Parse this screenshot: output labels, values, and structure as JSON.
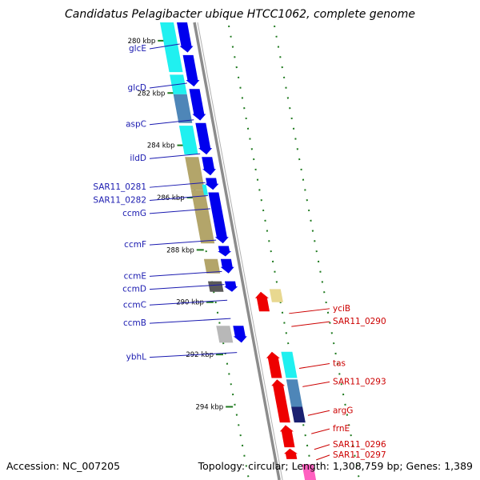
{
  "title": "Candidatus Pelagibacter ubique HTCC1062, complete genome",
  "footer": {
    "accession": "Accession: NC_007205",
    "summary": "Topology: circular; Length: 1,308,759 bp; Genes: 1,389"
  },
  "map": {
    "kbp_start": 279.3,
    "kbp_end": 296.8,
    "ticks": [
      {
        "kbp": 280,
        "label": "280 kbp"
      },
      {
        "kbp": 282,
        "label": "282 kbp"
      },
      {
        "kbp": 284,
        "label": "284 kbp"
      },
      {
        "kbp": 286,
        "label": "286 kbp"
      },
      {
        "kbp": 288,
        "label": "288 kbp"
      },
      {
        "kbp": 290,
        "label": "290 kbp"
      },
      {
        "kbp": 292,
        "label": "292 kbp"
      },
      {
        "kbp": 294,
        "label": "294 kbp"
      }
    ],
    "forward_cds": [
      {
        "start": 279.3,
        "end": 280.45
      },
      {
        "start": 280.55,
        "end": 281.75
      },
      {
        "start": 281.85,
        "end": 283.05
      },
      {
        "start": 283.15,
        "end": 284.35
      },
      {
        "start": 284.45,
        "end": 285.15
      },
      {
        "start": 285.25,
        "end": 285.7
      },
      {
        "start": 285.8,
        "end": 287.75
      },
      {
        "start": 287.85,
        "end": 288.25
      },
      {
        "start": 288.35,
        "end": 288.9
      },
      {
        "start": 289.2,
        "end": 289.6
      },
      {
        "start": 290.9,
        "end": 291.55
      }
    ],
    "reverse_cds": [
      {
        "start": 289.6,
        "end": 290.35
      },
      {
        "start": 291.9,
        "end": 292.9
      },
      {
        "start": 292.95,
        "end": 294.6
      },
      {
        "start": 294.7,
        "end": 295.55
      },
      {
        "start": 295.6,
        "end": 296.0
      }
    ],
    "cog_forward": [
      {
        "start": 279.3,
        "end": 281.2,
        "color": "#20f0f0"
      },
      {
        "start": 281.3,
        "end": 282.05,
        "color": "#20f0f0"
      },
      {
        "start": 282.05,
        "end": 283.15,
        "color": "#4e86b8"
      },
      {
        "start": 283.25,
        "end": 284.35,
        "color": "#20f0f0"
      },
      {
        "start": 284.45,
        "end": 285.7,
        "color": "#b3a56a"
      },
      {
        "start": 285.7,
        "end": 287.75,
        "color": "#b3a56a"
      },
      {
        "start": 288.35,
        "end": 288.9,
        "color": "#b3a56a"
      },
      {
        "start": 289.2,
        "end": 289.6,
        "color": "#5a5a5a"
      },
      {
        "start": 290.9,
        "end": 291.55,
        "color": "#b8b8b8"
      }
    ],
    "cog_inner": [
      {
        "start": 285.5,
        "end": 285.9,
        "color": "#20f0f0"
      }
    ],
    "cog_reverse": [
      {
        "start": 289.5,
        "end": 290.0,
        "color": "#e8d890"
      },
      {
        "start": 291.9,
        "end": 292.9,
        "color": "#20f0f0"
      },
      {
        "start": 292.95,
        "end": 294.0,
        "color": "#4e86b8"
      },
      {
        "start": 294.0,
        "end": 294.6,
        "color": "#1a2070"
      },
      {
        "start": 296.2,
        "end": 296.8,
        "color": "#ff60c0"
      }
    ],
    "forward_labels": [
      {
        "name": "glcE",
        "kbp": 280.4
      },
      {
        "name": "glcD",
        "kbp": 281.9
      },
      {
        "name": "aspC",
        "kbp": 283.3
      },
      {
        "name": "ildD",
        "kbp": 284.6
      },
      {
        "name": "SAR11_0281",
        "kbp": 285.7
      },
      {
        "name": "SAR11_0282",
        "kbp": 286.2
      },
      {
        "name": "ccmG",
        "kbp": 286.7
      },
      {
        "name": "ccmF",
        "kbp": 287.9
      },
      {
        "name": "ccmE",
        "kbp": 289.1
      },
      {
        "name": "ccmD",
        "kbp": 289.6
      },
      {
        "name": "ccmC",
        "kbp": 290.2
      },
      {
        "name": "ccmB",
        "kbp": 290.9
      },
      {
        "name": "ybhL",
        "kbp": 292.2
      }
    ],
    "reverse_labels": [
      {
        "name": "yciB",
        "kbp": 290.4
      },
      {
        "name": "SAR11_0290",
        "kbp": 290.9
      },
      {
        "name": "tas",
        "kbp": 292.5
      },
      {
        "name": "SAR11_0293",
        "kbp": 293.2
      },
      {
        "name": "argG",
        "kbp": 294.3
      },
      {
        "name": "frnE",
        "kbp": 295.0
      },
      {
        "name": "SAR11_0296",
        "kbp": 295.6
      },
      {
        "name": "SAR11_0297",
        "kbp": 296.0
      }
    ],
    "colors": {
      "forward_cds": "#0000ee",
      "reverse_cds": "#ee0000",
      "forward_label": "#1a1ab0",
      "reverse_label": "#cc0000",
      "backbone": "#8c8c8c",
      "tick": "#1f7a1f"
    }
  }
}
